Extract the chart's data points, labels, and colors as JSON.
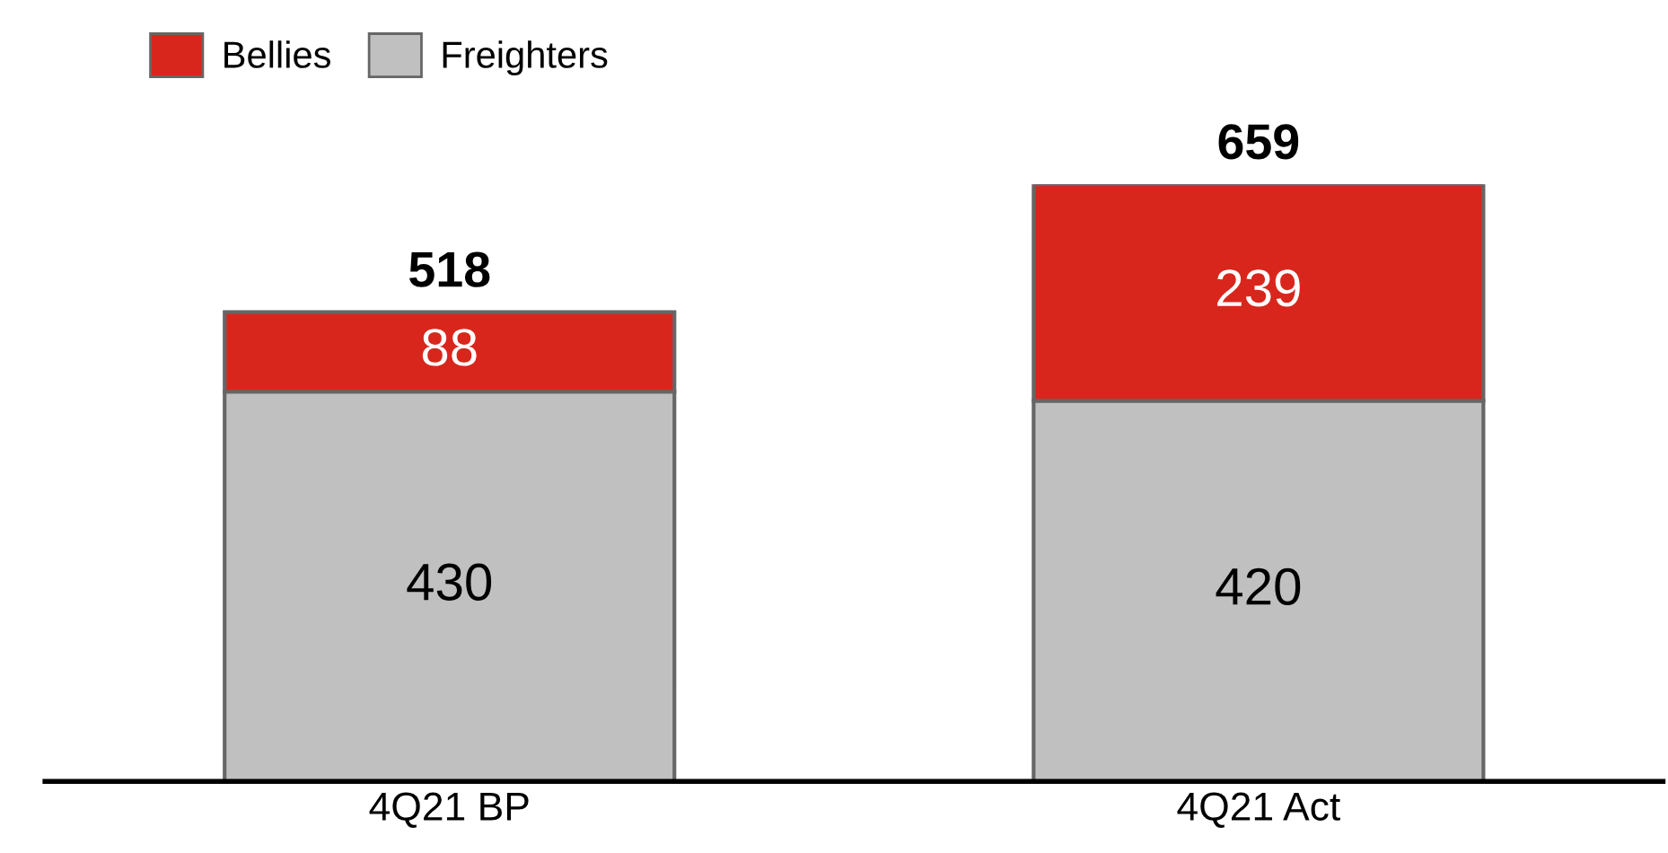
{
  "chart_data": {
    "type": "bar",
    "stacked": true,
    "categories": [
      "4Q21 BP",
      "4Q21 Act"
    ],
    "series": [
      {
        "name": "Freighters",
        "color": "#c0c0c0",
        "values": [
          430,
          420
        ]
      },
      {
        "name": "Bellies",
        "color": "#d9261c",
        "values": [
          88,
          239
        ]
      }
    ],
    "data_labels": true,
    "totals": [
      "518",
      "659"
    ],
    "legend": "top left",
    "tick_labels": "x",
    "grid": false
  }
}
